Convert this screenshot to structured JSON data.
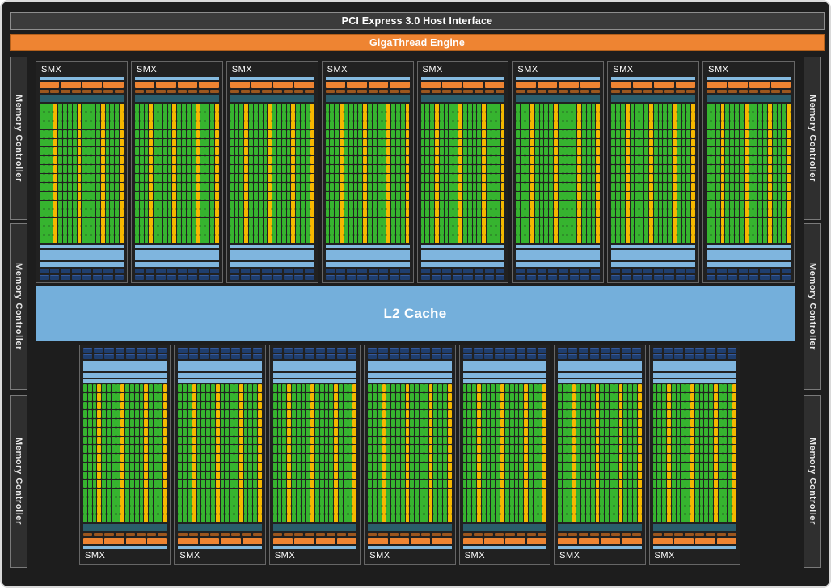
{
  "host_interface": {
    "label": "PCI Express 3.0 Host Interface"
  },
  "gigathread": {
    "label": "GigaThread Engine"
  },
  "l2_cache": {
    "label": "L2 Cache"
  },
  "memory_controller": {
    "label": "Memory Controller",
    "left_count": 3,
    "right_count": 3
  },
  "smx": {
    "label": "SMX",
    "top_row_count": 8,
    "bottom_row_count": 7,
    "core_grid": {
      "rows": 16,
      "cols": 18,
      "yellow_columns": [
        4,
        9,
        14,
        18
      ]
    },
    "warp_scheduler_count": 4,
    "dispatch_unit_count": 8,
    "texture_unit_rows": 2,
    "texture_units_per_row": 8
  },
  "colors": {
    "background": "#1d1d1d",
    "frame_border": "#d9d9d9",
    "host_interface_bg": "#3b3b3b",
    "host_interface_border": "#8d8d8d",
    "orange": "#ee8432",
    "dark_orange": "#9c561e",
    "teal": "#2b5d6b",
    "green": "#36b42f",
    "yellow": "#f5b800",
    "light_blue": "#85badf",
    "box_blue": "#7fb5de",
    "l2_blue": "#74afdb",
    "navy": "#1f3e6e",
    "panel_bg": "#212121",
    "panel_border": "#666666",
    "mc_bg": "#2f2f2f",
    "mc_border": "#7a7a7a",
    "text": "#ffffff"
  }
}
